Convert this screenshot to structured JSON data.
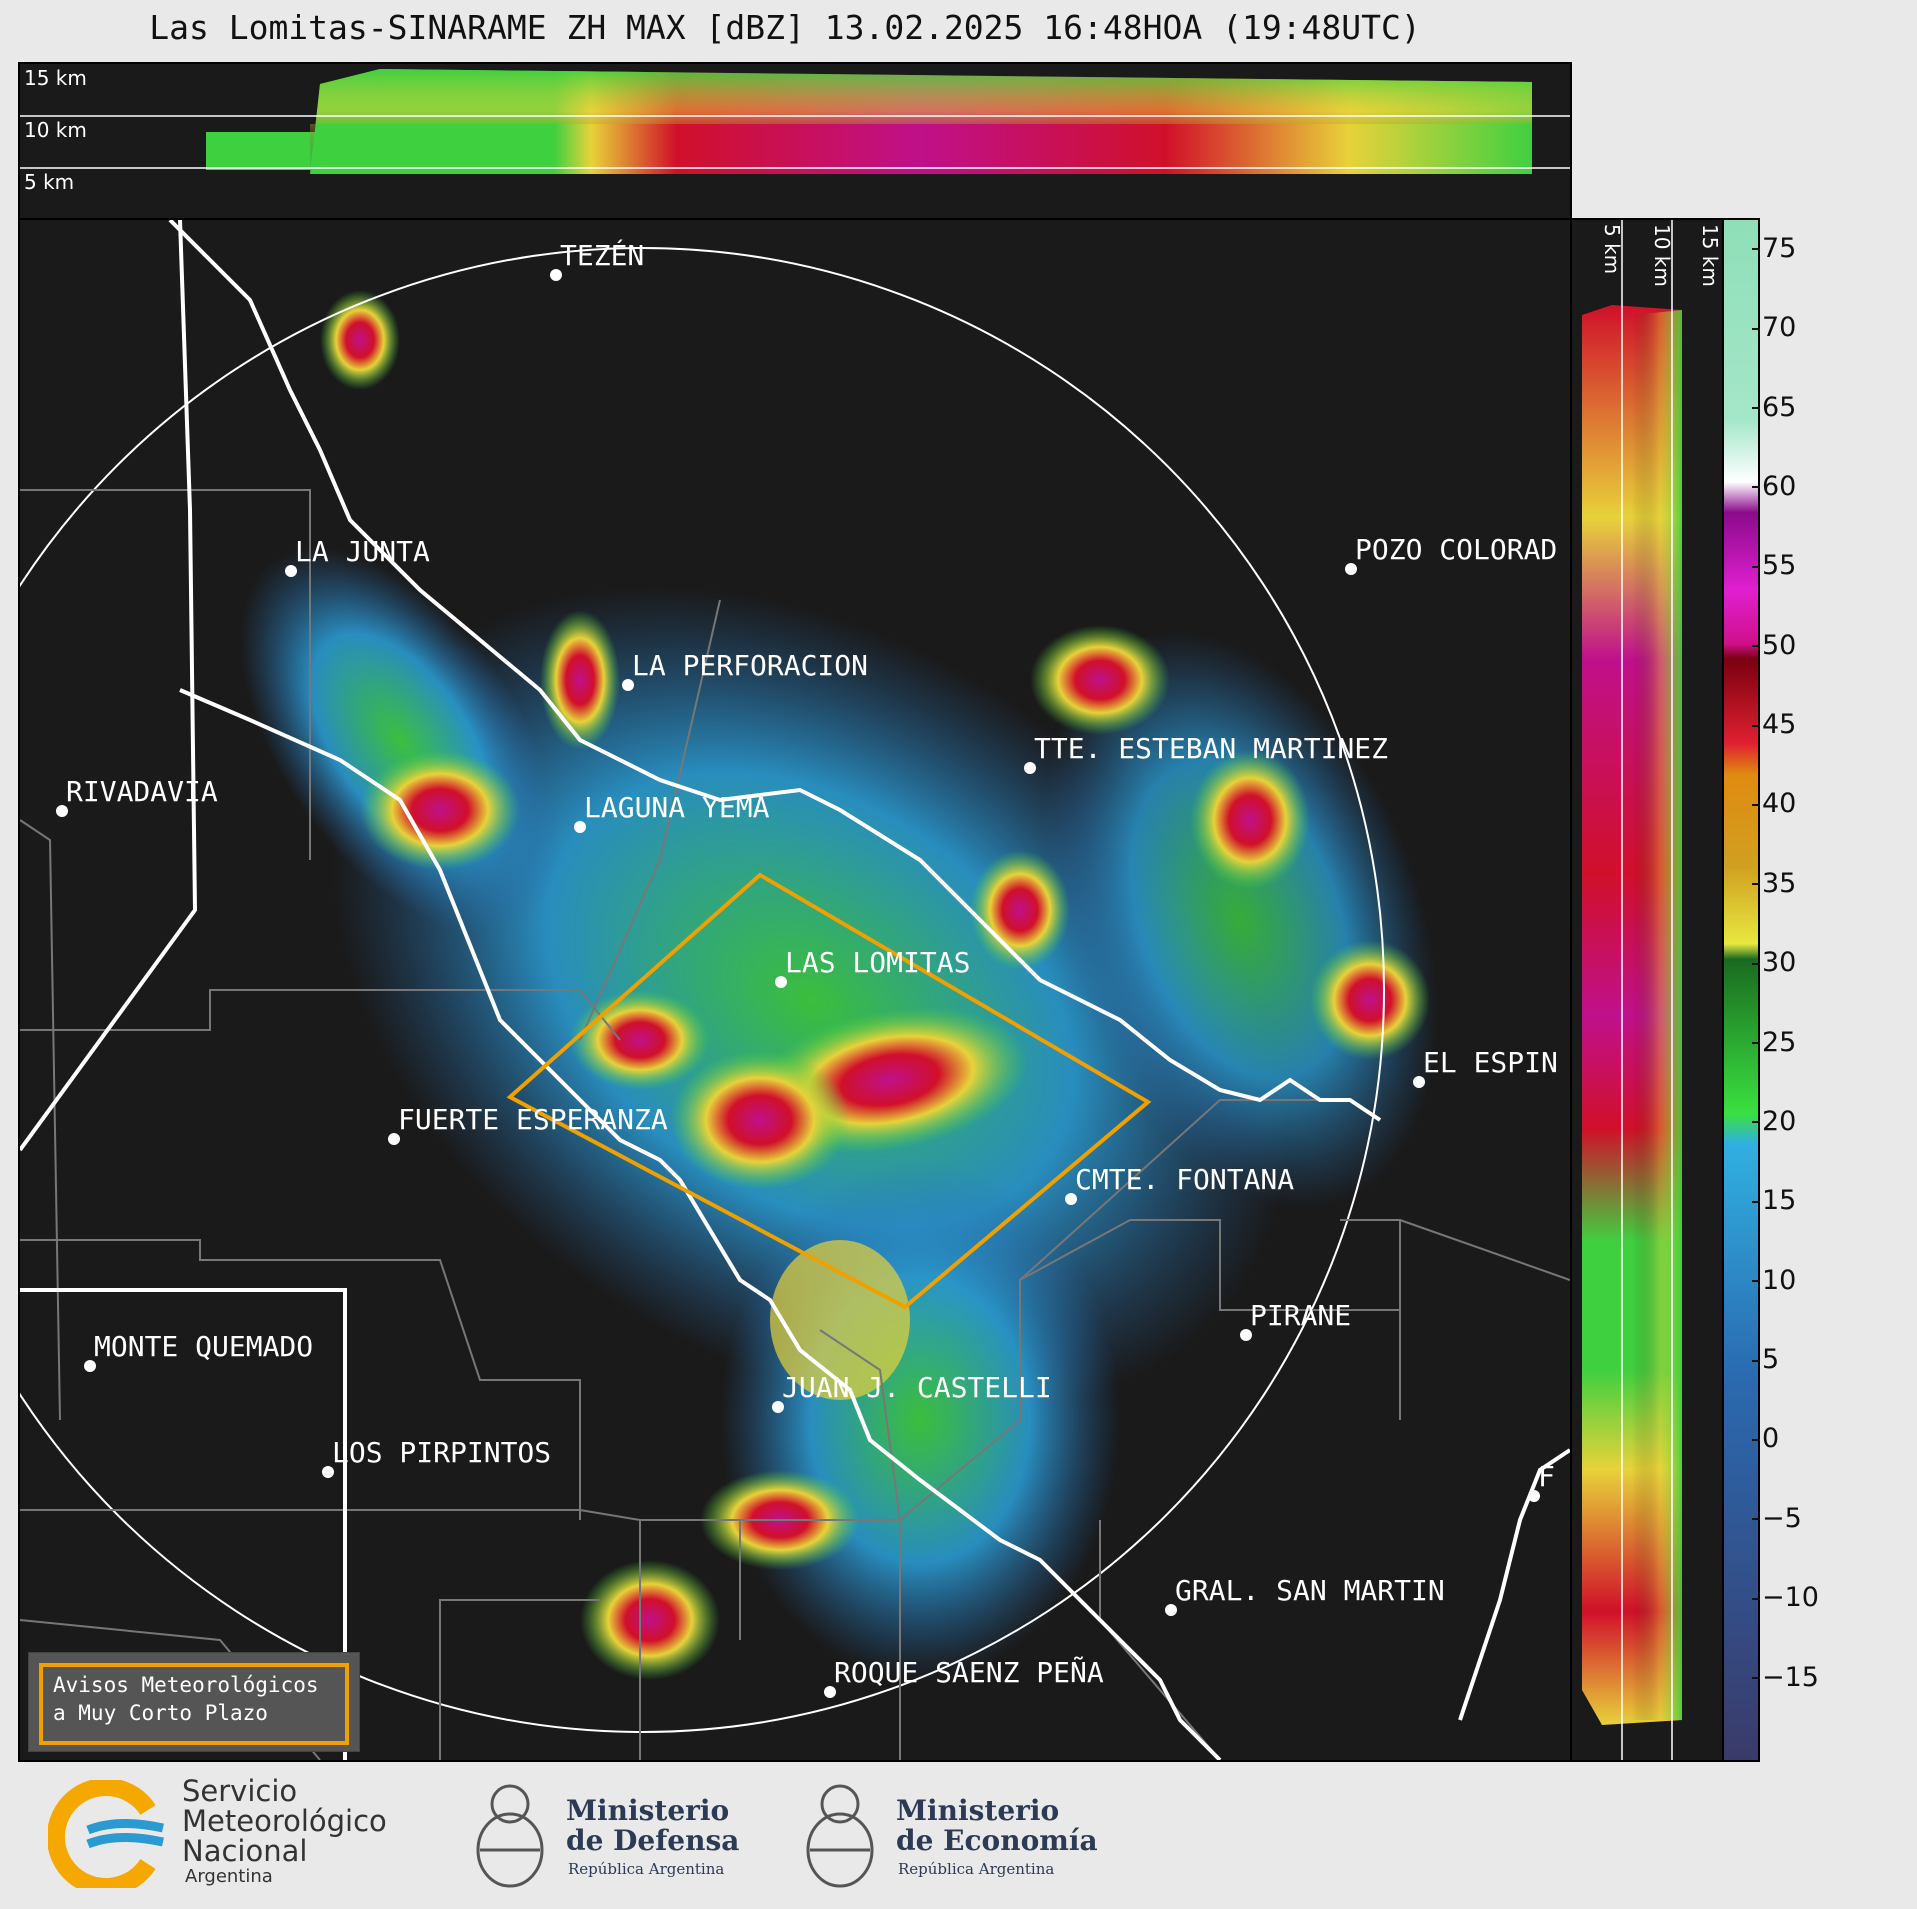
{
  "title": "Las Lomitas-SINARAME ZH MAX [dBZ] 13.02.2025 16:48HOA (19:48UTC)",
  "top_panel": {
    "altitude_labels": [
      "15 km",
      "10 km",
      "5 km"
    ]
  },
  "side_panel": {
    "altitude_labels": [
      "5 km",
      "10 km",
      "15 km"
    ]
  },
  "colorbar": {
    "unit": "dBZ",
    "range": [
      -20,
      77
    ],
    "ticks": [
      "75",
      "70",
      "65",
      "60",
      "55",
      "50",
      "45",
      "40",
      "35",
      "30",
      "25",
      "20",
      "15",
      "10",
      "5",
      "0",
      "−5",
      "−10",
      "−15"
    ]
  },
  "cities": [
    {
      "name": "TEZÉN"
    },
    {
      "name": "LA JUNTA"
    },
    {
      "name": "POZO COLORAD"
    },
    {
      "name": "LA PERFORACION"
    },
    {
      "name": "TTE. ESTEBAN MARTINEZ"
    },
    {
      "name": "RIVADAVIA"
    },
    {
      "name": "LAGUNA YEMA"
    },
    {
      "name": "LAS LOMITAS"
    },
    {
      "name": "EL ESPIN"
    },
    {
      "name": "FUERTE ESPERANZA"
    },
    {
      "name": "CMTE. FONTANA"
    },
    {
      "name": "PIRANE"
    },
    {
      "name": "MONTE QUEMADO"
    },
    {
      "name": "JUAN J. CASTELLI"
    },
    {
      "name": "LOS PIRPINTOS"
    },
    {
      "name": "GRAL. SAN MARTIN"
    },
    {
      "name": "ROQUE SAENZ PEÑA"
    },
    {
      "name": "F"
    }
  ],
  "alerts_box": {
    "line1": "Avisos Meteorológicos",
    "line2": "a Muy Corto Plazo"
  },
  "logos": {
    "smn": {
      "line1": "Servicio",
      "line2": "Meteorológico",
      "line3": "Nacional",
      "line4": "Argentina"
    },
    "defensa": {
      "line1": "Ministerio",
      "line2": "de Defensa",
      "sub": "República Argentina"
    },
    "economia": {
      "line1": "Ministerio",
      "line2": "de Economía",
      "sub": "República Argentina"
    }
  },
  "colors": {
    "alert_polygon": "#f0a000",
    "background": "#1a1a1a"
  }
}
